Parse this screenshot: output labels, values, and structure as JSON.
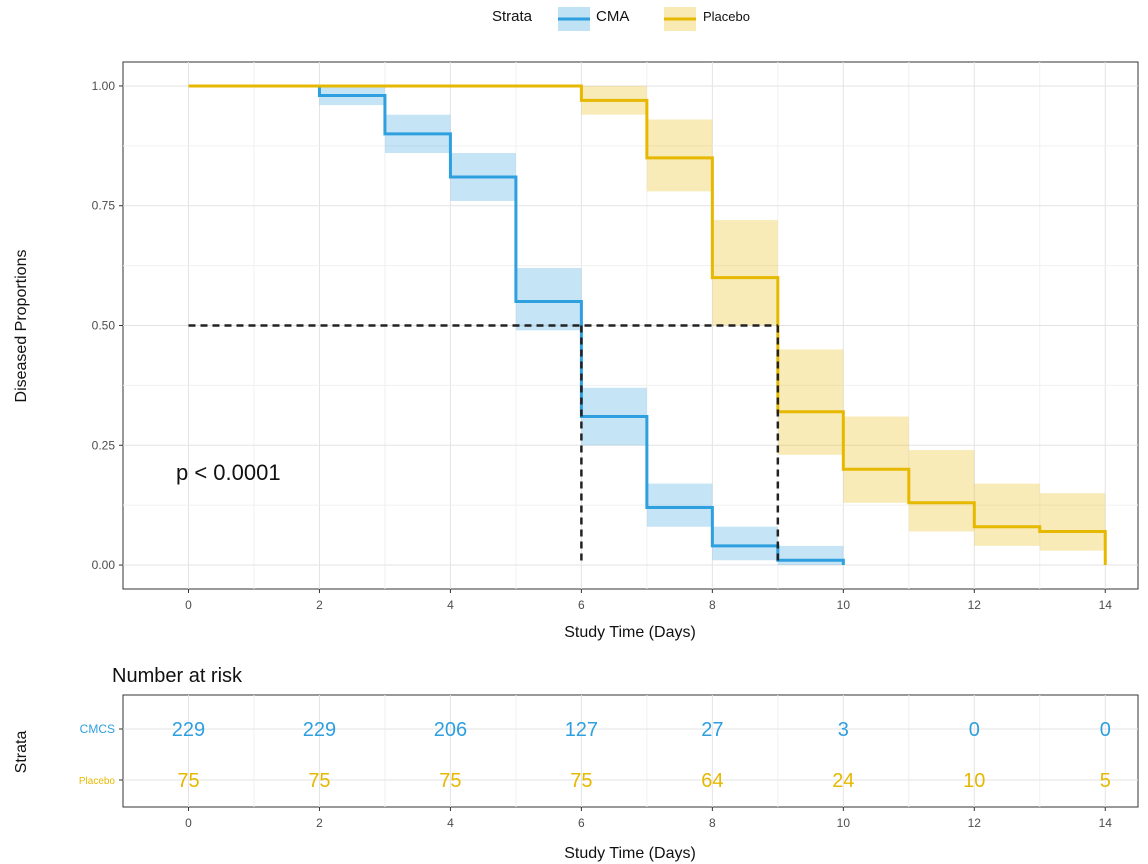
{
  "legend": {
    "title": "Strata",
    "items": [
      "CMA",
      "Placebo"
    ]
  },
  "colors": {
    "cma": "#2E9FDF",
    "placebo": "#E7B800",
    "reference": "#222222"
  },
  "chart_data": [
    {
      "type": "line",
      "subtype": "kaplan-meier step curves with confidence bands",
      "xlabel": "Study Time (Days)",
      "ylabel": "Diseased Proportions",
      "xlim": [
        -1,
        14.5
      ],
      "ylim": [
        -0.05,
        1.05
      ],
      "x_ticks": [
        0,
        2,
        4,
        6,
        8,
        10,
        12,
        14
      ],
      "y_ticks": [
        0,
        0.25,
        0.5,
        0.75,
        1.0
      ],
      "y_tick_labels": [
        "0.00",
        "0.25",
        "0.50",
        "0.75",
        "1.00"
      ],
      "grid": true,
      "legend_position": "top",
      "annotation": "p < 0.0001",
      "median_line": {
        "y": 0.5,
        "x": [
          6,
          9
        ]
      },
      "series": [
        {
          "name": "CMA",
          "color": "#2E9FDF",
          "steps": [
            {
              "x": 0,
              "y": 1.0,
              "lo": 1.0,
              "hi": 1.0
            },
            {
              "x": 2,
              "y": 0.98,
              "lo": 0.96,
              "hi": 1.0
            },
            {
              "x": 3,
              "y": 0.9,
              "lo": 0.86,
              "hi": 0.94
            },
            {
              "x": 4,
              "y": 0.81,
              "lo": 0.76,
              "hi": 0.86
            },
            {
              "x": 5,
              "y": 0.55,
              "lo": 0.49,
              "hi": 0.62
            },
            {
              "x": 6,
              "y": 0.31,
              "lo": 0.25,
              "hi": 0.37
            },
            {
              "x": 7,
              "y": 0.12,
              "lo": 0.08,
              "hi": 0.17
            },
            {
              "x": 8,
              "y": 0.04,
              "lo": 0.01,
              "hi": 0.08
            },
            {
              "x": 9,
              "y": 0.01,
              "lo": 0.0,
              "hi": 0.04
            },
            {
              "x": 10,
              "y": 0.0,
              "lo": 0.0,
              "hi": 0.0
            }
          ]
        },
        {
          "name": "Placebo",
          "color": "#E7B800",
          "steps": [
            {
              "x": 0,
              "y": 1.0,
              "lo": 1.0,
              "hi": 1.0
            },
            {
              "x": 6,
              "y": 0.97,
              "lo": 0.94,
              "hi": 1.0
            },
            {
              "x": 7,
              "y": 0.85,
              "lo": 0.78,
              "hi": 0.93
            },
            {
              "x": 8,
              "y": 0.6,
              "lo": 0.5,
              "hi": 0.72
            },
            {
              "x": 9,
              "y": 0.32,
              "lo": 0.23,
              "hi": 0.45
            },
            {
              "x": 10,
              "y": 0.2,
              "lo": 0.13,
              "hi": 0.31
            },
            {
              "x": 11,
              "y": 0.13,
              "lo": 0.07,
              "hi": 0.24
            },
            {
              "x": 12,
              "y": 0.08,
              "lo": 0.04,
              "hi": 0.17
            },
            {
              "x": 13,
              "y": 0.07,
              "lo": 0.03,
              "hi": 0.15
            },
            {
              "x": 14,
              "y": 0.0,
              "lo": 0.0,
              "hi": 0.0
            }
          ]
        }
      ]
    },
    {
      "type": "table",
      "title": "Number at risk",
      "xlabel": "Study Time (Days)",
      "ylabel": "Strata",
      "times": [
        0,
        2,
        4,
        6,
        8,
        10,
        12,
        14
      ],
      "rows": [
        {
          "name": "CMCS",
          "color": "#2E9FDF",
          "values": [
            229,
            229,
            206,
            127,
            27,
            3,
            0,
            0
          ]
        },
        {
          "name": "Placebo",
          "color": "#E7B800",
          "values": [
            75,
            75,
            75,
            75,
            64,
            24,
            10,
            5
          ]
        }
      ]
    }
  ]
}
